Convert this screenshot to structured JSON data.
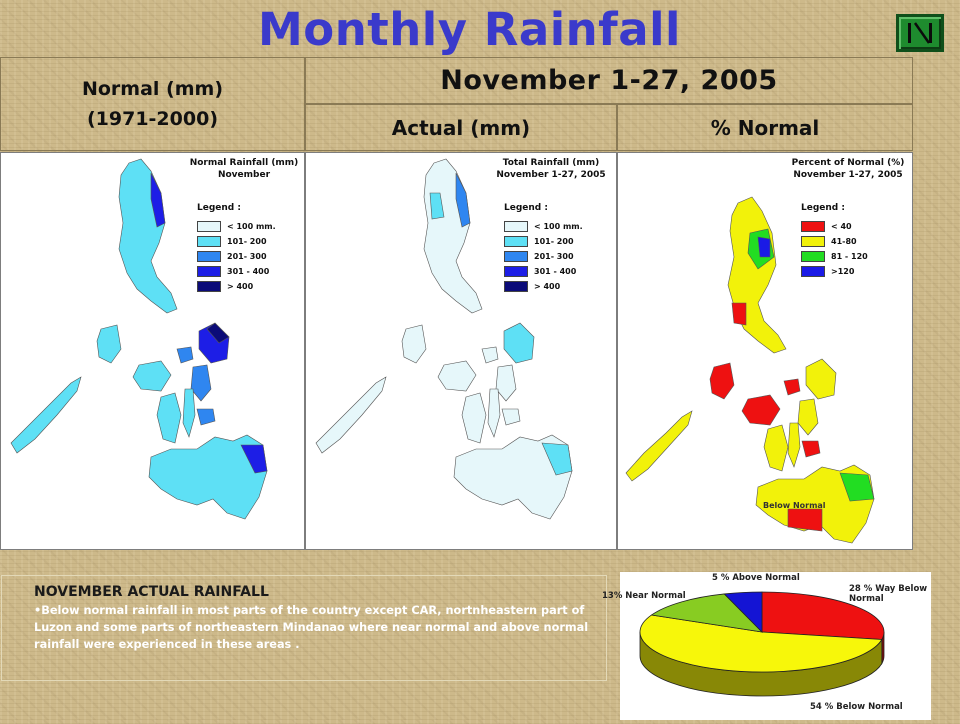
{
  "header": {
    "title": "Monthly Rainfall",
    "nav_button_icon": "first-slide-icon"
  },
  "table": {
    "normal_line1": "Normal (mm)",
    "normal_line2": "(1971-2000)",
    "period": "November 1-27, 2005",
    "actual": "Actual (mm)",
    "pct_normal": "% Normal"
  },
  "maps": {
    "normal": {
      "title_line1": "Normal Rainfall (mm)",
      "title_line2": "November",
      "legend_title": "Legend :",
      "legend": [
        {
          "label": "< 100 mm.",
          "color": "#e6f7fa"
        },
        {
          "label": "101- 200",
          "color": "#5ee0f5"
        },
        {
          "label": "201- 300",
          "color": "#2f86f0"
        },
        {
          "label": "301 - 400",
          "color": "#1d1ee6"
        },
        {
          "label": "> 400",
          "color": "#0b0b78"
        }
      ]
    },
    "actual": {
      "title_line1": "Total Rainfall (mm)",
      "title_line2": "November 1-27, 2005",
      "legend_title": "Legend :",
      "legend": [
        {
          "label": "< 100 mm.",
          "color": "#e6f7fa"
        },
        {
          "label": "101- 200",
          "color": "#5ee0f5"
        },
        {
          "label": "201- 300",
          "color": "#2f86f0"
        },
        {
          "label": "301 - 400",
          "color": "#1d1ee6"
        },
        {
          "label": "> 400",
          "color": "#0b0b78"
        }
      ]
    },
    "percent": {
      "title_line1": "Percent of Normal (%)",
      "title_line2": "November 1-27, 2005",
      "legend_title": "Legend :",
      "legend": [
        {
          "label": "< 40",
          "color": "#ee1111"
        },
        {
          "label": "41-80",
          "color": "#f2f20a"
        },
        {
          "label": "81 - 120",
          "color": "#22dd22"
        },
        {
          "label": ">120",
          "color": "#1a1ae6"
        }
      ],
      "note": "Below Normal"
    }
  },
  "summary": {
    "title": "NOVEMBER ACTUAL RAINFALL",
    "body": "•Below normal rainfall in most parts of the country except CAR, nortnheastern part of Luzon and  some parts of northeastern Mindanao where near normal and above normal rainfall were experienced in these areas ."
  },
  "chart_data": {
    "type": "pie",
    "title": "",
    "slices": [
      {
        "label": "28 % Way Below Normal",
        "value": 28,
        "color": "#ee1111"
      },
      {
        "label": "54 % Below Normal",
        "value": 54,
        "color": "#f7f70a"
      },
      {
        "label": "13% Near  Normal",
        "value": 13,
        "color": "#88cc22"
      },
      {
        "label": "5 %  Above Normal",
        "value": 5,
        "color": "#1414d4"
      }
    ],
    "labels": {
      "above": "5 %  Above Normal",
      "way_below_1": "28 % Way Below",
      "way_below_2": "Normal",
      "near": "13% Near  Normal",
      "below": "54 % Below Normal"
    },
    "legend": "none"
  }
}
